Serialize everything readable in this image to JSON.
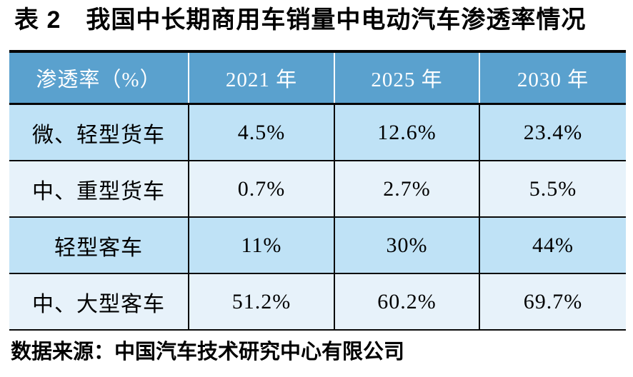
{
  "title": "表 2　我国中长期商用车销量中电动汽车渗透率情况",
  "source_note": "数据来源：中国汽车技术研究中心有限公司",
  "chart_data": {
    "type": "table",
    "title": "我国中长期商用车销量中电动汽车渗透率情况",
    "caption_prefix": "表 2",
    "unit": "%",
    "columns": [
      "渗透率（%）",
      "2021 年",
      "2025 年",
      "2030 年"
    ],
    "rows": [
      {
        "category": "微、轻型货车",
        "values": [
          "4.5%",
          "12.6%",
          "23.4%"
        ],
        "values_numeric": [
          4.5,
          12.6,
          23.4
        ]
      },
      {
        "category": "中、重型货车",
        "values": [
          "0.7%",
          "2.7%",
          "5.5%"
        ],
        "values_numeric": [
          0.7,
          2.7,
          5.5
        ]
      },
      {
        "category": "轻型客车",
        "values": [
          "11%",
          "30%",
          "44%"
        ],
        "values_numeric": [
          11,
          30,
          44
        ]
      },
      {
        "category": "中、大型客车",
        "values": [
          "51.2%",
          "60.2%",
          "69.7%"
        ],
        "values_numeric": [
          51.2,
          60.2,
          69.7
        ]
      }
    ],
    "source": "中国汽车技术研究中心有限公司"
  },
  "colors": {
    "header_bg": "#5aa1ce",
    "header_text": "#ffffff",
    "row_light": "#bfe2f6",
    "row_pale": "#e7f2fa",
    "border": "#050505",
    "body_text": "#000000"
  }
}
